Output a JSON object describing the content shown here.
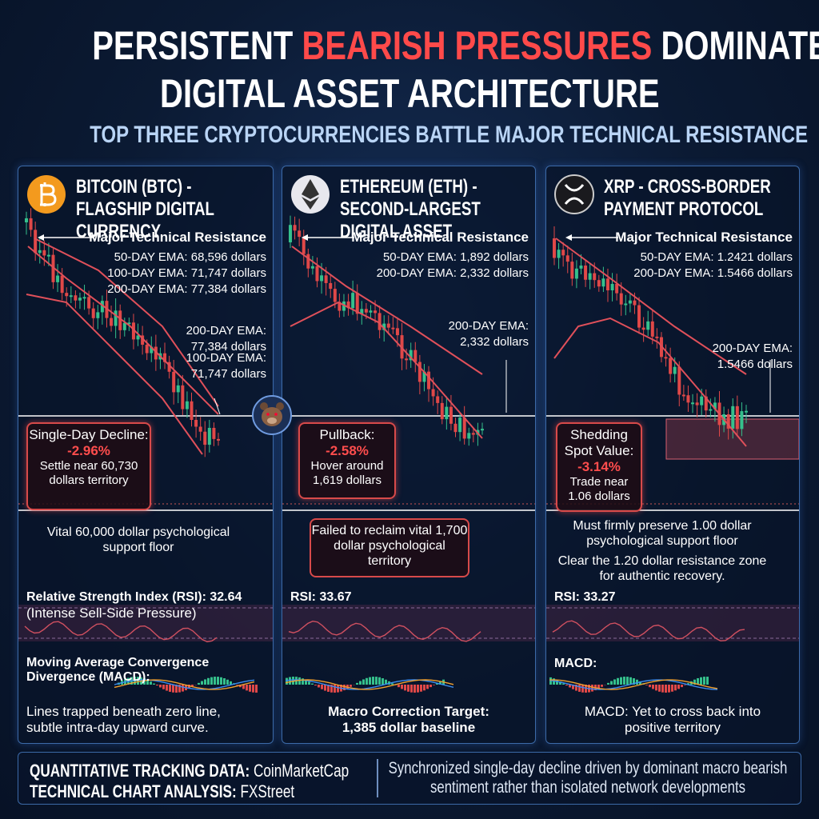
{
  "header": {
    "title_line1": [
      "PERSISTENT ",
      "BEARISH PRESSURES",
      " DOMINATE"
    ],
    "title_line2": "DIGITAL ASSET ARCHITECTURE",
    "subtitle": "TOP THREE CRYPTOCURRENCIES BATTLE MAJOR TECHNICAL RESISTANCE"
  },
  "panels": [
    {
      "name": "BITCOIN (BTC) - FLAGSHIP DIGITAL CURRENCY",
      "resistance_title": "Major Technical Resistance",
      "emas": [
        "50-DAY EMA: 68,596 dollars",
        "100-DAY EMA: 71,747 dollars",
        "200-DAY EMA: 77,384 dollars"
      ],
      "chart_labels": [
        "100-DAY EMA: 71,747 dollars",
        "200-DAY EMA: 77,384 dollars"
      ],
      "callout": {
        "heading": "Single-Day Decline:",
        "change": "-2.96%",
        "note": "Settle near 60,730 dollars territory"
      },
      "support": [
        "Vital 60,000 dollar psychological support floor"
      ],
      "rsi": "Relative Strength Index (RSI): 32.64",
      "rsi_note": "(Intense Sell-Side Pressure)",
      "macd": "Moving Average Convergence Divergence (MACD):",
      "macd_note": "Lines trapped beneath zero line, subtle intra-day upward curve."
    },
    {
      "name": "ETHEREUM (ETH) - SECOND-LARGEST DIGITAL ASSET",
      "resistance_title": "Major Technical Resistance",
      "emas": [
        "50-DAY EMA: 1,892 dollars",
        "200-DAY EMA: 2,332 dollars"
      ],
      "chart_labels": [
        "200-DAY EMA: 2,332 dollars"
      ],
      "callout": {
        "heading": "Pullback:",
        "change": "-2.58%",
        "note": "Hover around 1,619 dollars"
      },
      "support": [
        "Failed to reclaim vital 1,700 dollar psychological territory"
      ],
      "rsi": "RSI: 33.67",
      "macd_note": "Macro Correction Target: 1,385 dollar baseline"
    },
    {
      "name": "XRP - CROSS-BORDER PAYMENT PROTOCOL",
      "resistance_title": "Major Technical Resistance",
      "emas": [
        "50-DAY EMA: 1.2421 dollars",
        "200-DAY EMA: 1.5466 dollars"
      ],
      "chart_labels": [
        "200-DAY EMA: 1.5466 dollars"
      ],
      "callout": {
        "heading": "Shedding Spot Value:",
        "change": "-3.14%",
        "note": "Trade near 1.06 dollars"
      },
      "support": [
        "Must firmly preserve 1.00 dollar psychological support floor",
        "Clear the 1.20 dollar resistance zone for authentic recovery."
      ],
      "rsi": "RSI: 33.27",
      "macd": "MACD:",
      "macd_note": "MACD: Yet to cross back into positive territory"
    }
  ],
  "footer": {
    "sources": [
      [
        "QUANTITATIVE TRACKING DATA:",
        "CoinMarketCap"
      ],
      [
        "TECHNICAL CHART ANALYSIS:",
        "FXStreet"
      ]
    ],
    "summary": "Synchronized single-day decline driven by dominant macro bearish sentiment rather than isolated network developments"
  }
}
